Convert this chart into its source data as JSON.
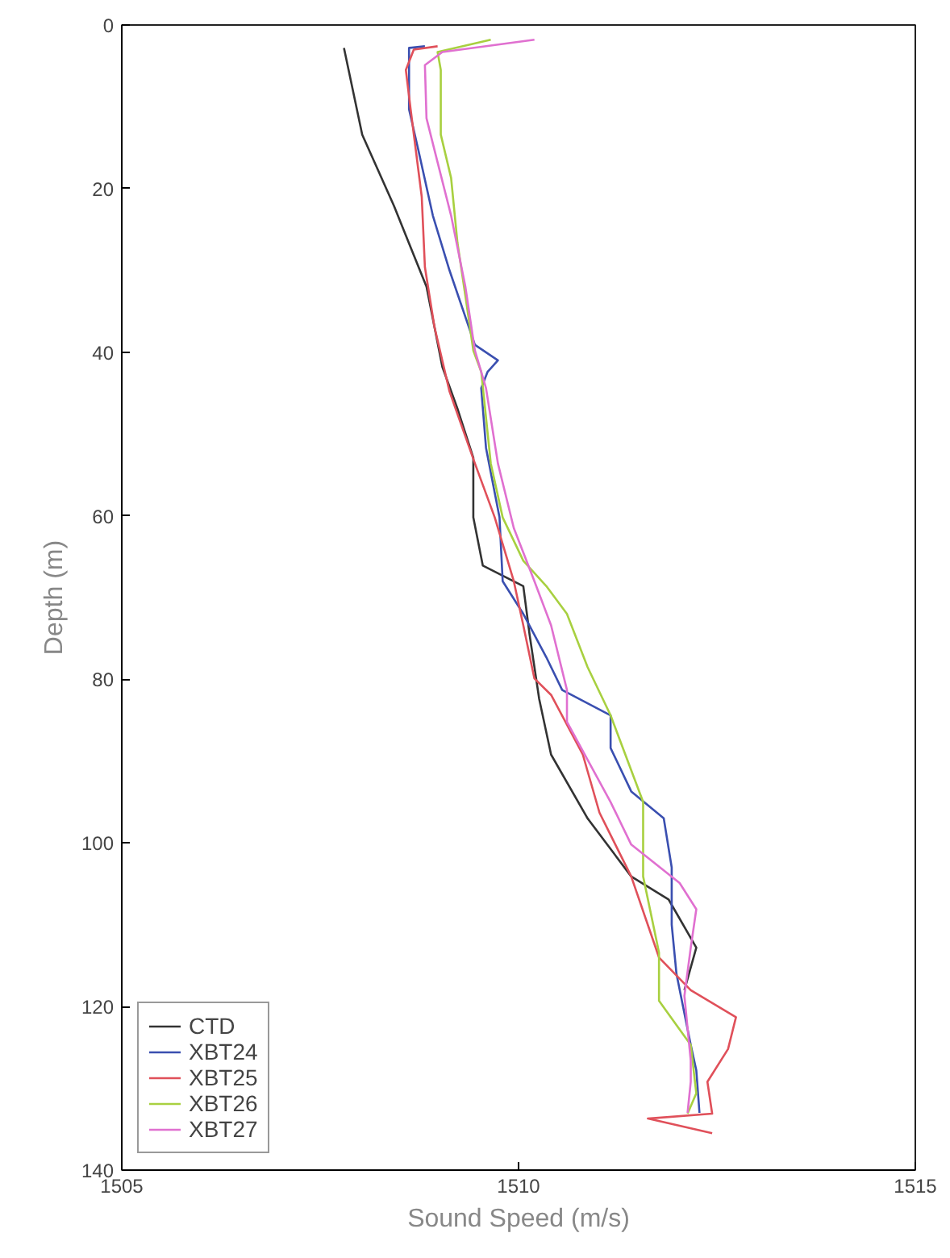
{
  "chart_data": {
    "type": "line",
    "xlabel": "Sound Speed (m/s)",
    "ylabel": "Depth (m)",
    "xlim": [
      1505,
      1515
    ],
    "xticks": [
      1505,
      1510,
      1515
    ],
    "ylim": [
      140,
      0
    ],
    "yticks": [
      0,
      20,
      40,
      60,
      80,
      100,
      120,
      140
    ],
    "grid": false,
    "legend": "bottom left",
    "line_style": "solid",
    "series": [
      {
        "name": "CTD",
        "color": "#333333",
        "x": [
          1507.8,
          1508.03,
          1508.43,
          1508.84,
          1509.04,
          1509.23,
          1509.43,
          1509.43,
          1509.55,
          1510.06,
          1510.14,
          1510.26,
          1510.41,
          1510.87,
          1511.42,
          1511.89,
          1512.24,
          1512.09
        ],
        "values": [
          2.8,
          13.4,
          22.1,
          32,
          41.8,
          46.9,
          52.9,
          60.2,
          66.1,
          68.6,
          74.6,
          82.4,
          89.2,
          97,
          104.1,
          106.9,
          112.8,
          118
        ]
      },
      {
        "name": "XBT24",
        "color": "#3a4fb0",
        "x": [
          1508.82,
          1508.62,
          1508.62,
          1508.74,
          1508.92,
          1509.13,
          1509.45,
          1509.74,
          1509.61,
          1509.53,
          1509.59,
          1509.76,
          1509.8,
          1510.06,
          1510.35,
          1510.55,
          1511.16,
          1511.16,
          1511.42,
          1511.83,
          1511.93,
          1511.93,
          1511.99,
          1512.17,
          1512.24,
          1512.28
        ],
        "values": [
          2.6,
          2.8,
          10.3,
          15.4,
          23.3,
          30,
          39.1,
          41,
          42.4,
          44.4,
          51.7,
          60.2,
          68,
          72,
          77.3,
          81.3,
          84.4,
          88.4,
          93.7,
          97,
          103,
          110,
          116,
          124.7,
          127.8,
          133
        ]
      },
      {
        "name": "XBT25",
        "color": "#e0505a",
        "x": [
          1508.98,
          1508.68,
          1508.58,
          1508.64,
          1508.78,
          1508.82,
          1508.94,
          1509.13,
          1509.45,
          1509.7,
          1509.94,
          1510.06,
          1510.2,
          1510.41,
          1510.81,
          1511.02,
          1511.42,
          1511.77,
          1512.17,
          1512.74,
          1512.64,
          1512.38,
          1512.44,
          1511.63,
          1512.44
        ],
        "values": [
          2.6,
          3,
          5.5,
          10.3,
          21,
          29.6,
          36.9,
          44.8,
          53.6,
          60.2,
          68,
          73.4,
          79.9,
          81.9,
          89.2,
          96.3,
          104.1,
          114,
          118,
          121.3,
          125.2,
          129.2,
          133.1,
          133.7,
          135.5
        ]
      },
      {
        "name": "XBT26",
        "color": "#a8d040",
        "x": [
          1509.65,
          1508.98,
          1509.02,
          1509.02,
          1509.15,
          1509.23,
          1509.33,
          1509.43,
          1509.53,
          1509.65,
          1509.8,
          1510.06,
          1510.35,
          1510.61,
          1510.87,
          1511.16,
          1511.57,
          1511.57,
          1511.77,
          1511.77,
          1512.17,
          1512.24,
          1512.13
        ],
        "values": [
          1.8,
          3.3,
          5.5,
          13.4,
          18.7,
          26.6,
          33.1,
          39.8,
          42.4,
          53.6,
          60.2,
          65.5,
          68.6,
          72,
          78.5,
          84.4,
          95,
          104.1,
          113.4,
          119.3,
          124.7,
          130.6,
          133.1
        ]
      },
      {
        "name": "XBT27",
        "color": "#e070d0",
        "x": [
          1510.2,
          1509.04,
          1508.82,
          1508.84,
          1508.98,
          1509.15,
          1509.33,
          1509.45,
          1509.59,
          1509.74,
          1509.94,
          1510.2,
          1510.41,
          1510.61,
          1510.61,
          1511.16,
          1511.42,
          1512.03,
          1512.24,
          1512.17,
          1512.09,
          1512.17,
          1512.17,
          1512.13
        ],
        "values": [
          1.8,
          3.3,
          4.9,
          11.4,
          16.8,
          23.3,
          32,
          39.8,
          44.4,
          53.6,
          61.5,
          68,
          73.4,
          81.3,
          85.2,
          95,
          100.2,
          104.9,
          108.1,
          112.8,
          118.7,
          126.6,
          129.2,
          133
        ]
      }
    ]
  }
}
